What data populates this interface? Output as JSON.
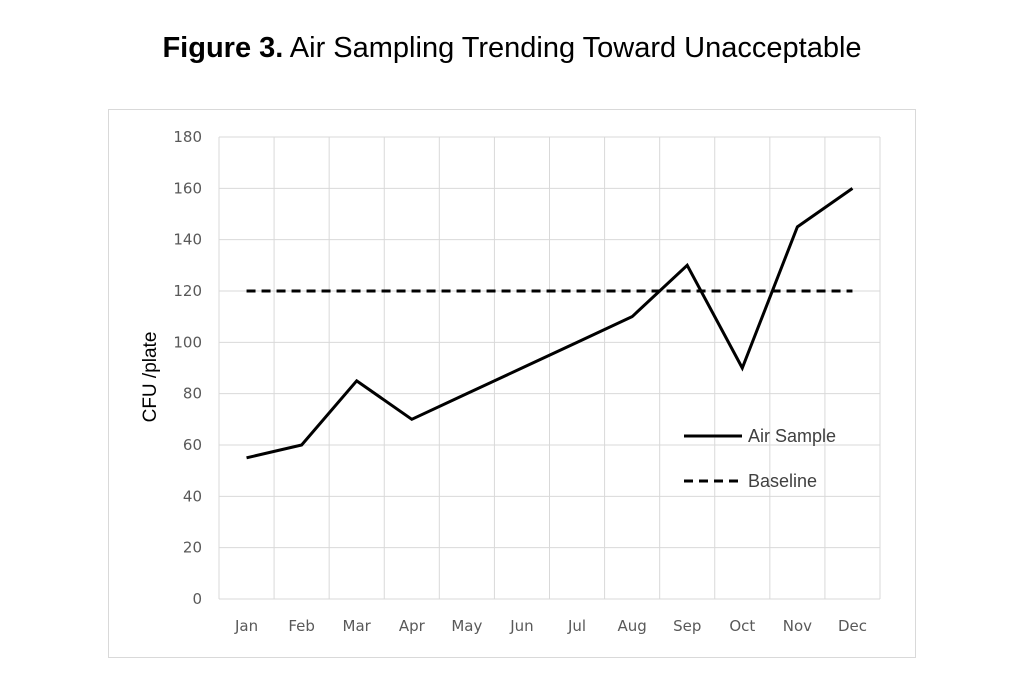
{
  "figure": {
    "label": "Figure 3.",
    "title": "Air Sampling Trending Toward Unacceptable"
  },
  "chart_data": {
    "type": "line",
    "categories": [
      "Jan",
      "Feb",
      "Mar",
      "Apr",
      "May",
      "Jun",
      "Jul",
      "Aug",
      "Sep",
      "Oct",
      "Nov",
      "Dec"
    ],
    "ylabel": "CFU /plate",
    "xlabel": "",
    "ylim": [
      0,
      180
    ],
    "yticks": [
      0,
      20,
      40,
      60,
      80,
      100,
      120,
      140,
      160,
      180
    ],
    "grid": true,
    "legend_position": "right",
    "series": [
      {
        "name": "Air Sample",
        "style": "solid",
        "color": "#000000",
        "values": [
          55,
          60,
          85,
          70,
          80,
          90,
          100,
          110,
          130,
          90,
          145,
          160
        ]
      },
      {
        "name": "Baseline",
        "style": "dashed",
        "color": "#000000",
        "values": [
          120,
          120,
          120,
          120,
          120,
          120,
          120,
          120,
          120,
          120,
          120,
          120
        ]
      }
    ]
  }
}
